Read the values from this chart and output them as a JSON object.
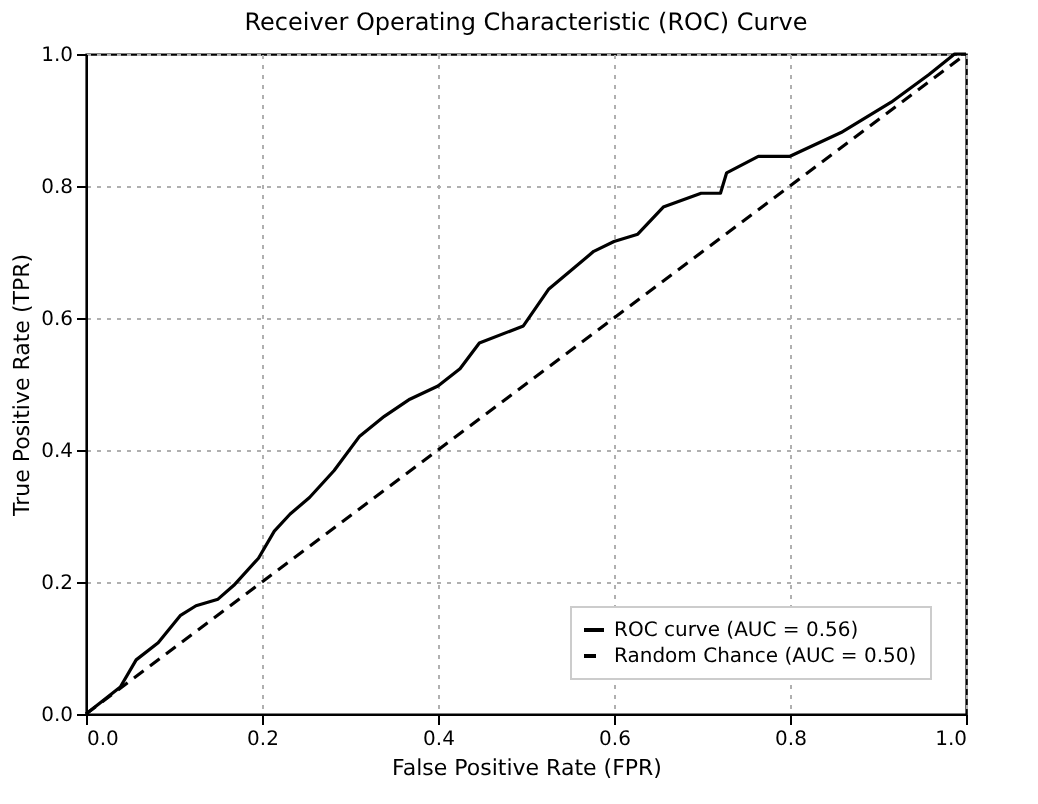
{
  "chart_data": {
    "type": "line",
    "title": "Receiver Operating Characteristic (ROC) Curve",
    "xlabel": "False Positive Rate (FPR)",
    "ylabel": "True Positive Rate (TPR)",
    "xlim": [
      0,
      1
    ],
    "ylim": [
      0,
      1
    ],
    "xticks": [
      {
        "value": 0,
        "label": "0.0"
      },
      0.2,
      0.4,
      0.6,
      0.8,
      {
        "value": 1,
        "label": "1.0"
      }
    ],
    "yticks": [
      {
        "value": 0,
        "label": "0.0"
      },
      0.2,
      0.4,
      0.6,
      0.8,
      {
        "value": 1,
        "label": "1.0"
      }
    ],
    "grid": true,
    "legend": "bottom right",
    "series": [
      {
        "name": "ROC curve (AUC = 0.56)",
        "color": "#000000",
        "line_style": "solid",
        "x": [
          0,
          0.039,
          0.057,
          0.082,
          0.107,
          0.125,
          0.15,
          0.168,
          0.196,
          0.214,
          0.232,
          0.254,
          0.282,
          0.311,
          0.339,
          0.368,
          0.4,
          0.425,
          0.447,
          0.497,
          0.526,
          0.577,
          0.6,
          0.627,
          0.656,
          0.699,
          0.721,
          0.728,
          0.764,
          0.8,
          0.858,
          0.915,
          0.958,
          0.987,
          1
        ],
        "values": [
          0,
          0.041,
          0.082,
          0.108,
          0.149,
          0.164,
          0.174,
          0.195,
          0.236,
          0.277,
          0.303,
          0.328,
          0.369,
          0.421,
          0.451,
          0.477,
          0.497,
          0.523,
          0.562,
          0.588,
          0.644,
          0.701,
          0.716,
          0.727,
          0.768,
          0.789,
          0.789,
          0.82,
          0.845,
          0.845,
          0.881,
          0.927,
          0.969,
          1.0,
          1.0
        ]
      },
      {
        "name": "Random Chance (AUC = 0.50)",
        "color": "#000000",
        "line_style": "dashed",
        "x": [
          0,
          1
        ],
        "values": [
          0,
          1
        ]
      }
    ]
  }
}
